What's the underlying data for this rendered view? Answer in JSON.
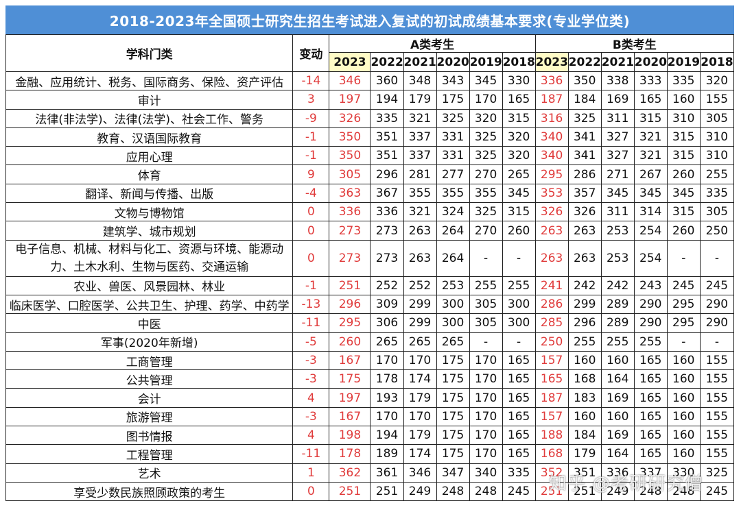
{
  "title": "2018-2023年全国硕士研究生招生考试进入复试的初试成绩基本要求(专业学位类)",
  "headers": {
    "subject": "学科门类",
    "change": "变动",
    "groupA": "A类考生",
    "groupB": "B类考生",
    "years": [
      "2023",
      "2022",
      "2021",
      "2020",
      "2019",
      "2018"
    ]
  },
  "rows": [
    {
      "subject": "金融、应用统计、税务、国际商务、保险、资产评估",
      "change": "-14",
      "a": [
        "346",
        "360",
        "348",
        "343",
        "345",
        "330"
      ],
      "b": [
        "336",
        "350",
        "338",
        "333",
        "335",
        "320"
      ]
    },
    {
      "subject": "审计",
      "change": "3",
      "a": [
        "197",
        "194",
        "179",
        "175",
        "170",
        "165"
      ],
      "b": [
        "187",
        "184",
        "169",
        "165",
        "160",
        "155"
      ]
    },
    {
      "subject": "法律(非法学)、法律(法学)、社会工作、警务",
      "change": "-9",
      "a": [
        "326",
        "335",
        "321",
        "325",
        "320",
        "315"
      ],
      "b": [
        "316",
        "325",
        "311",
        "315",
        "310",
        "305"
      ]
    },
    {
      "subject": "教育、汉语国际教育",
      "change": "-1",
      "a": [
        "350",
        "351",
        "337",
        "331",
        "325",
        "320"
      ],
      "b": [
        "340",
        "341",
        "327",
        "321",
        "315",
        "310"
      ]
    },
    {
      "subject": "应用心理",
      "change": "-1",
      "a": [
        "350",
        "351",
        "337",
        "331",
        "325",
        "320"
      ],
      "b": [
        "340",
        "341",
        "327",
        "321",
        "315",
        "310"
      ]
    },
    {
      "subject": "体育",
      "change": "9",
      "a": [
        "305",
        "296",
        "281",
        "277",
        "270",
        "265"
      ],
      "b": [
        "295",
        "286",
        "271",
        "267",
        "260",
        "255"
      ]
    },
    {
      "subject": "翻译、新闻与传播、出版",
      "change": "-4",
      "a": [
        "363",
        "367",
        "355",
        "355",
        "355",
        "345"
      ],
      "b": [
        "353",
        "357",
        "345",
        "345",
        "345",
        "335"
      ]
    },
    {
      "subject": "文物与博物馆",
      "change": "0",
      "a": [
        "336",
        "336",
        "321",
        "324",
        "325",
        "315"
      ],
      "b": [
        "326",
        "326",
        "311",
        "314",
        "315",
        "305"
      ]
    },
    {
      "subject": "建筑学、城市规划",
      "change": "0",
      "a": [
        "273",
        "273",
        "263",
        "264",
        "270",
        "260"
      ],
      "b": [
        "263",
        "263",
        "253",
        "254",
        "260",
        "250"
      ]
    },
    {
      "subject": "电子信息、机械、材料与化工、资源与环境、能源动力、土木水利、生物与医药、交通运输",
      "change": "0",
      "tall": true,
      "a": [
        "273",
        "273",
        "263",
        "264",
        "-",
        "-"
      ],
      "b": [
        "263",
        "263",
        "253",
        "254",
        "-",
        "-"
      ]
    },
    {
      "subject": "农业、兽医、风景园林、林业",
      "change": "-1",
      "a": [
        "251",
        "252",
        "252",
        "253",
        "255",
        "255"
      ],
      "b": [
        "241",
        "242",
        "242",
        "243",
        "245",
        "245"
      ]
    },
    {
      "subject": "临床医学、口腔医学、公共卫生、护理、药学、中药学",
      "change": "-13",
      "a": [
        "296",
        "309",
        "299",
        "300",
        "305",
        "300"
      ],
      "b": [
        "286",
        "299",
        "289",
        "290",
        "295",
        "290"
      ]
    },
    {
      "subject": "中医",
      "change": "-11",
      "a": [
        "295",
        "306",
        "299",
        "300",
        "305",
        "300"
      ],
      "b": [
        "285",
        "296",
        "289",
        "290",
        "295",
        "290"
      ]
    },
    {
      "subject": "军事(2020年新增)",
      "change": "-5",
      "a": [
        "260",
        "265",
        "265",
        "265",
        "-",
        "-"
      ],
      "b": [
        "250",
        "255",
        "255",
        "255",
        "-",
        "-"
      ]
    },
    {
      "subject": "工商管理",
      "change": "-3",
      "a": [
        "167",
        "170",
        "170",
        "175",
        "170",
        "165"
      ],
      "b": [
        "157",
        "160",
        "160",
        "165",
        "160",
        "155"
      ]
    },
    {
      "subject": "公共管理",
      "change": "-3",
      "a": [
        "175",
        "178",
        "174",
        "175",
        "170",
        "165"
      ],
      "b": [
        "165",
        "168",
        "164",
        "165",
        "160",
        "155"
      ]
    },
    {
      "subject": "会计",
      "change": "4",
      "a": [
        "197",
        "193",
        "179",
        "175",
        "170",
        "165"
      ],
      "b": [
        "187",
        "183",
        "169",
        "165",
        "160",
        "155"
      ]
    },
    {
      "subject": "旅游管理",
      "change": "-3",
      "a": [
        "167",
        "170",
        "170",
        "175",
        "170",
        "165"
      ],
      "b": [
        "157",
        "160",
        "160",
        "165",
        "160",
        "155"
      ]
    },
    {
      "subject": "图书情报",
      "change": "4",
      "a": [
        "198",
        "194",
        "179",
        "175",
        "170",
        "165"
      ],
      "b": [
        "188",
        "184",
        "169",
        "165",
        "160",
        "155"
      ]
    },
    {
      "subject": "工程管理",
      "change": "-11",
      "a": [
        "178",
        "189",
        "174",
        "175",
        "170",
        "165"
      ],
      "b": [
        "168",
        "179",
        "164",
        "165",
        "160",
        "155"
      ]
    },
    {
      "subject": "艺术",
      "change": "1",
      "a": [
        "362",
        "361",
        "346",
        "347",
        "340",
        "335"
      ],
      "b": [
        "352",
        "351",
        "336",
        "337",
        "330",
        "325"
      ]
    },
    {
      "subject": "享受少数民族照顾政策的考生",
      "change": "0",
      "a": [
        "251",
        "251",
        "249",
        "248",
        "248",
        "245"
      ],
      "b": [
        "251",
        "251",
        "249",
        "248",
        "248",
        "245"
      ]
    }
  ],
  "watermark": "知乎 @考研研究僧",
  "colors": {
    "title_bg": "#4f8fd6",
    "highlight_red": "#e03b3b",
    "year_highlight_bg": "#fffbc6"
  }
}
